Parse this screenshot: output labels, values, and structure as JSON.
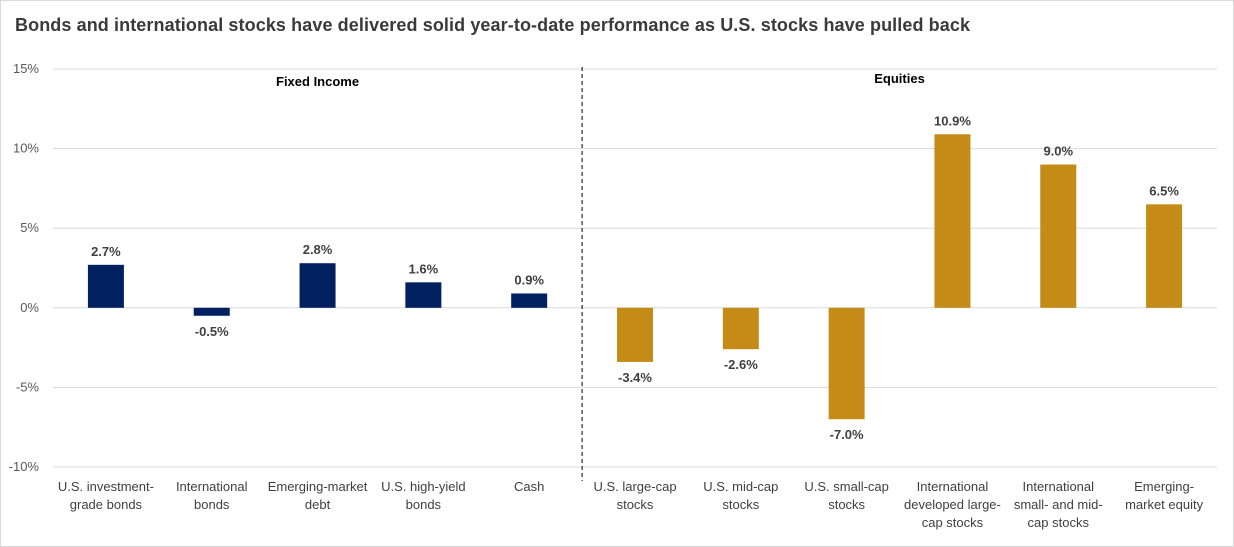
{
  "chart_data": {
    "type": "bar",
    "title": "Bonds and international  stocks have delivered solid year-to-date  performance  as U.S. stocks have pulled back",
    "xlabel": "",
    "ylabel": "",
    "ylim": [
      -10,
      15
    ],
    "y_ticks": [
      15,
      10,
      5,
      0,
      -5,
      -10
    ],
    "y_tick_labels": [
      "15%",
      "10%",
      "5%",
      "0%",
      "-5%",
      "-10%"
    ],
    "grid": true,
    "sections": [
      {
        "label": "Fixed Income",
        "start_index": 0,
        "end_index": 4
      },
      {
        "label": "Equities",
        "start_index": 5,
        "end_index": 10
      }
    ],
    "categories": [
      [
        "U.S. investment-",
        "grade bonds"
      ],
      [
        "International",
        "bonds"
      ],
      [
        "Emerging-market",
        "debt"
      ],
      [
        "U.S. high-yield",
        "bonds"
      ],
      [
        "Cash"
      ],
      [
        "U.S. large-cap",
        "stocks"
      ],
      [
        "U.S. mid-cap",
        "stocks"
      ],
      [
        "U.S. small-cap",
        "stocks"
      ],
      [
        "International",
        "developed large-",
        "cap stocks"
      ],
      [
        "International",
        "small- and mid-",
        "cap stocks"
      ],
      [
        "Emerging-",
        "market equity"
      ]
    ],
    "values": [
      2.7,
      -0.5,
      2.8,
      1.6,
      0.9,
      -3.4,
      -2.6,
      -7.0,
      10.9,
      9.0,
      6.5
    ],
    "data_labels": [
      "2.7%",
      "-0.5%",
      "2.8%",
      "1.6%",
      "0.9%",
      "-3.4%",
      "-2.6%",
      "-7.0%",
      "10.9%",
      "9.0%",
      "6.5%"
    ],
    "colors": {
      "fixed_income": "#002060",
      "equities": "#c58b17",
      "grid": "#d9d9d9",
      "divider": "#000000"
    }
  }
}
